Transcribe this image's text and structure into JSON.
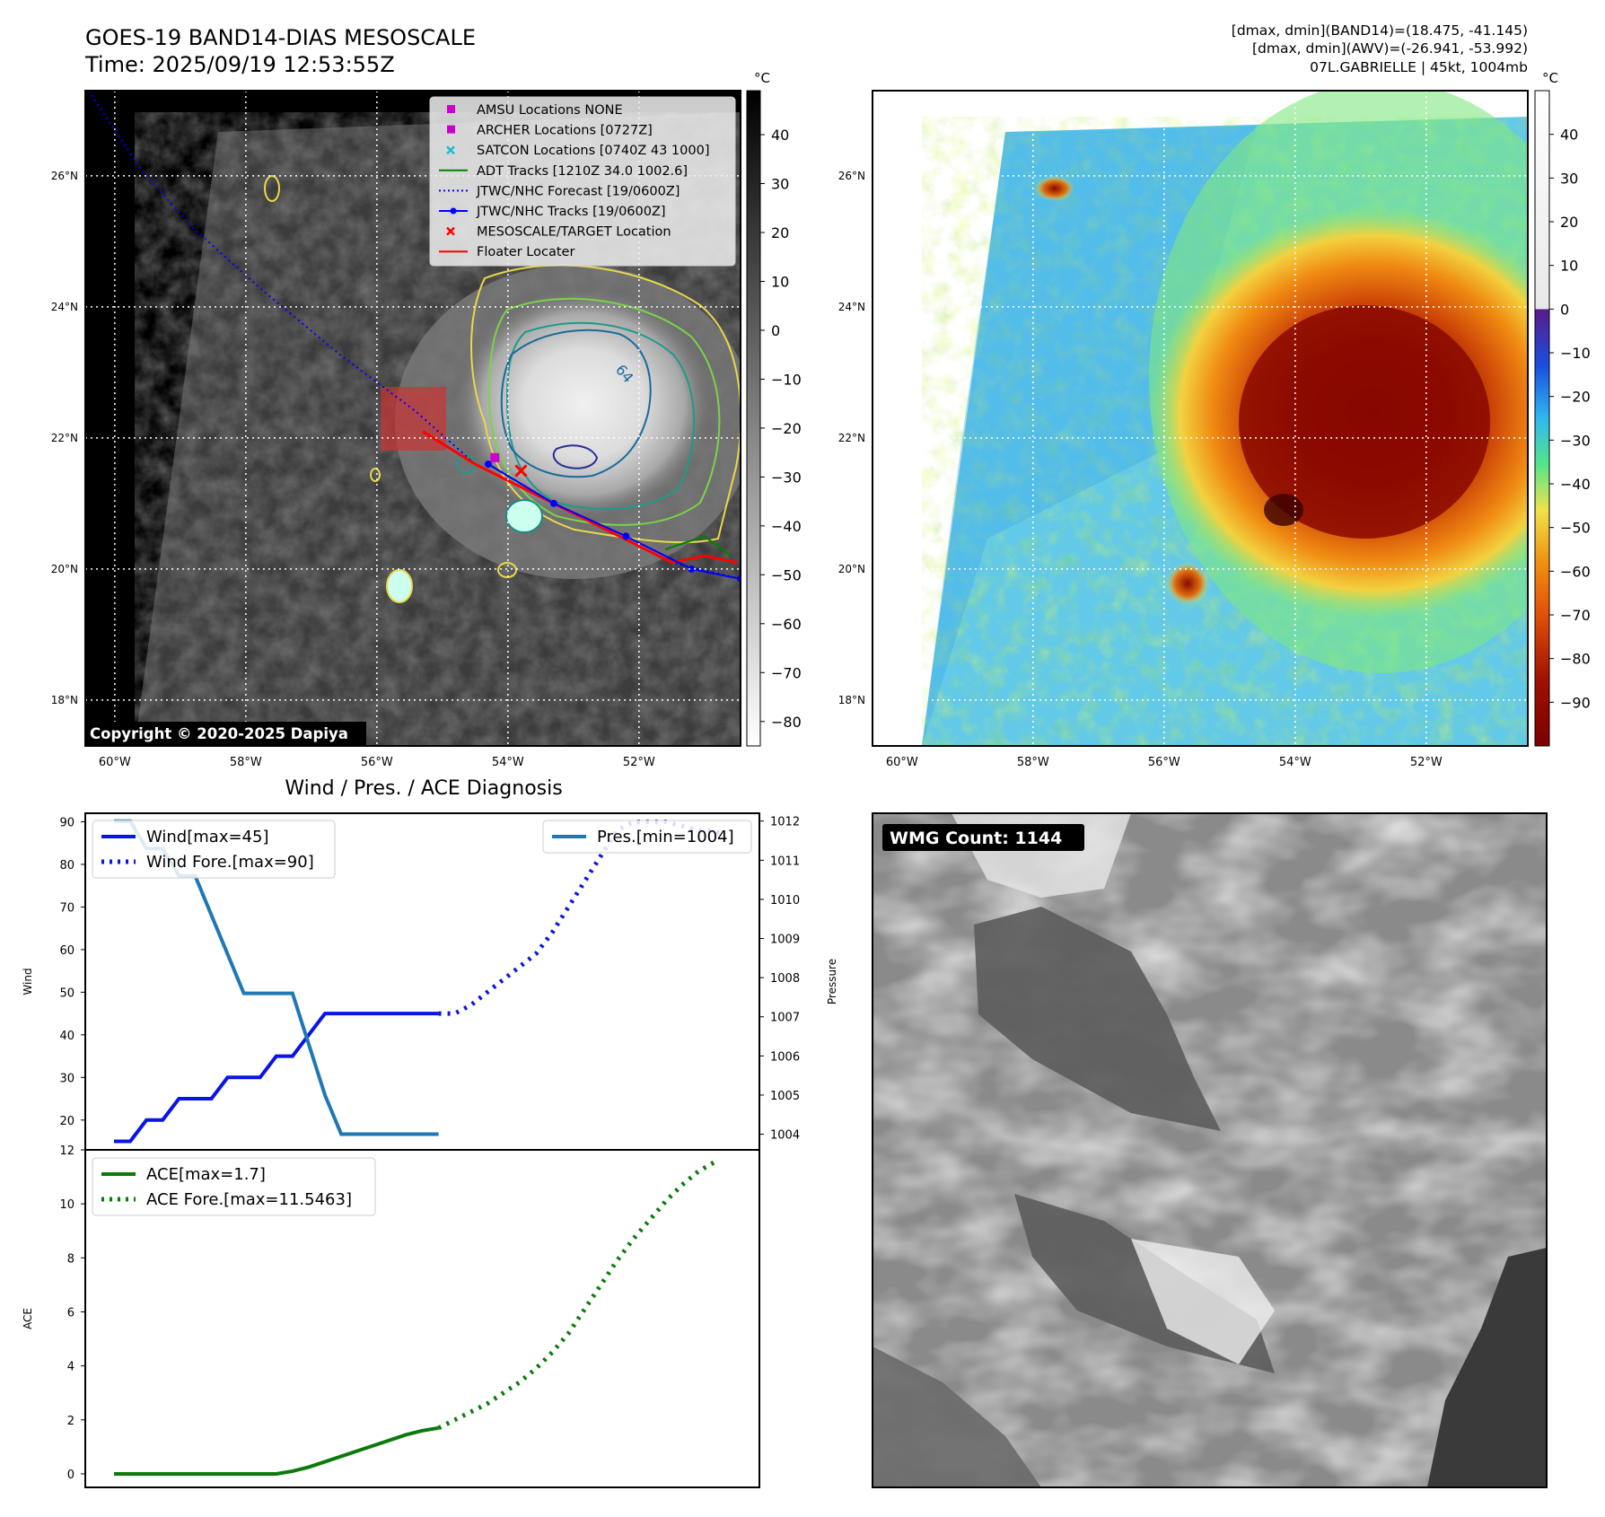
{
  "header": {
    "title_line1": "GOES-19 BAND14-DIAS MESOSCALE",
    "title_line2": "Time: 2025/09/19 12:53:55Z",
    "stats_line1": "[dmax, dmin](BAND14)=(18.475, -41.145)",
    "stats_line2": "[dmax, dmin](AWV)=(-26.941, -53.992)",
    "stats_line3": "07L.GABRIELLE | 45kt, 1004mb"
  },
  "copyright": "Copyright © 2020-2025 Dapiya",
  "wmg_label": "WMG Count: 1144",
  "diag_title": "Wind / Pres. / ACE Diagnosis",
  "colors": {
    "wind": "#0a14e6",
    "pres": "#1f77b4",
    "ace": "#0a7a0a",
    "floater": "#ff0000",
    "adt": "#008000",
    "amsu": "#cc00cc",
    "satcon": "#17becf"
  },
  "chart_data": [
    {
      "id": "band14-map",
      "type": "heatmap",
      "colorbar_unit": "°C",
      "colorbar_ticks": [
        "40",
        "30",
        "20",
        "10",
        "0",
        "−10",
        "−20",
        "−30",
        "−40",
        "−50",
        "−60",
        "−70",
        "−80"
      ],
      "colorbar_range": [
        -85,
        49
      ],
      "colormap": "grayscale",
      "x_ticks": [
        "60°W",
        "58°W",
        "56°W",
        "54°W",
        "52°W"
      ],
      "x_tick_values": [
        -60,
        -58,
        -56,
        -54,
        -52
      ],
      "y_ticks": [
        "26°N",
        "24°N",
        "22°N",
        "20°N",
        "18°N"
      ],
      "y_tick_values": [
        26,
        24,
        22,
        20,
        18
      ],
      "lon_range": [
        -60.45,
        -50.45
      ],
      "lat_range": [
        17.3,
        27.3
      ],
      "legend": [
        {
          "label": "AMSU Locations NONE",
          "marker": "square",
          "color": "#cc00cc"
        },
        {
          "label": "ARCHER Locations [0727Z]",
          "marker": "square",
          "color": "#cc00cc"
        },
        {
          "label": "SATCON Locations [0740Z 43 1000]",
          "marker": "x",
          "color": "#17becf"
        },
        {
          "label": "ADT Tracks [1210Z 34.0 1002.6]",
          "marker": "line",
          "color": "#008000"
        },
        {
          "label": "JTWC/NHC Forecast [19/0600Z]",
          "marker": "dotted",
          "color": "#0000ff"
        },
        {
          "label": "JTWC/NHC Tracks [19/0600Z]",
          "marker": "line-dot",
          "color": "#0000ff"
        },
        {
          "label": "MESOSCALE/TARGET Location",
          "marker": "x",
          "color": "#ff0000"
        },
        {
          "label": "Floater Locater",
          "marker": "line",
          "color": "#ff0000"
        }
      ],
      "contour_label": "64",
      "target_location": {
        "lon": -53.8,
        "lat": 21.5
      },
      "archer_location": {
        "lon": -54.2,
        "lat": 21.7
      },
      "jtwc_forecast_track": [
        [
          -60.4,
          27.3
        ],
        [
          -59.6,
          26.1
        ],
        [
          -58.8,
          25.2
        ],
        [
          -57.8,
          24.3
        ],
        [
          -56.6,
          23.3
        ],
        [
          -55.4,
          22.4
        ],
        [
          -54.5,
          21.6
        ],
        [
          -53.5,
          21.1
        ],
        [
          -52.5,
          20.6
        ],
        [
          -51.5,
          20.1
        ],
        [
          -50.45,
          19.85
        ]
      ],
      "jtwc_tracks": [
        [
          -54.3,
          21.6
        ],
        [
          -53.3,
          21.0
        ],
        [
          -52.2,
          20.5
        ],
        [
          -51.2,
          20.0
        ],
        [
          -50.45,
          19.85
        ]
      ],
      "floater_track": [
        [
          -55.3,
          22.1
        ],
        [
          -54.5,
          21.6
        ],
        [
          -53.3,
          21.0
        ],
        [
          -52.1,
          20.4
        ],
        [
          -51.5,
          20.1
        ],
        [
          -51.0,
          20.2
        ],
        [
          -50.5,
          20.1
        ]
      ],
      "adt_track": [
        [
          -51.6,
          20.3
        ],
        [
          -51.0,
          20.5
        ],
        [
          -50.6,
          20.2
        ]
      ]
    },
    {
      "id": "awv-map",
      "type": "heatmap",
      "colorbar_unit": "°C",
      "colorbar_ticks": [
        "40",
        "30",
        "20",
        "10",
        "0",
        "−10",
        "−20",
        "−30",
        "−40",
        "−50",
        "−60",
        "−70",
        "−80",
        "−90"
      ],
      "colorbar_range": [
        -100,
        50
      ],
      "colormap": "jet-turbo",
      "x_ticks": [
        "60°W",
        "58°W",
        "56°W",
        "54°W",
        "52°W"
      ],
      "x_tick_values": [
        -60,
        -58,
        -56,
        -54,
        -52
      ],
      "y_ticks": [
        "26°N",
        "24°N",
        "22°N",
        "20°N",
        "18°N"
      ],
      "y_tick_values": [
        26,
        24,
        22,
        20,
        18
      ],
      "lon_range": [
        -60.45,
        -50.45
      ],
      "lat_range": [
        17.3,
        27.3
      ]
    },
    {
      "id": "wind-pres",
      "type": "line",
      "x": [
        0,
        1,
        2,
        3,
        4,
        5,
        6,
        7,
        8,
        9,
        10,
        11,
        12,
        13,
        14,
        15,
        16,
        17,
        18,
        19,
        20,
        21,
        22,
        23,
        24,
        25,
        26,
        27,
        28,
        29,
        30,
        31,
        32,
        33,
        34,
        35,
        36,
        37,
        38
      ],
      "series": [
        {
          "name": "Wind[max=45]",
          "axis": "left",
          "style": "solid",
          "values": [
            15,
            15,
            20,
            20,
            25,
            25,
            25,
            30,
            30,
            30,
            35,
            35,
            40,
            45,
            45,
            45,
            45,
            45,
            45,
            45,
            45,
            null,
            null,
            null,
            null,
            null,
            null,
            null,
            null,
            null,
            null,
            null,
            null,
            null,
            null,
            null,
            null,
            null,
            null
          ]
        },
        {
          "name": "Wind Fore.[max=90]",
          "axis": "left",
          "style": "dotted",
          "values": [
            null,
            null,
            null,
            null,
            null,
            null,
            null,
            null,
            null,
            null,
            null,
            null,
            null,
            null,
            null,
            null,
            null,
            null,
            null,
            null,
            45,
            45,
            47,
            50,
            53,
            56,
            59,
            64,
            70,
            76,
            82,
            88,
            90,
            90,
            90,
            89,
            88,
            88,
            85
          ]
        },
        {
          "name": "Pres.[min=1004]",
          "axis": "right",
          "style": "solid",
          "values": [
            1012,
            1012,
            1011.3,
            1011.3,
            1010.6,
            1010.6,
            1009.6,
            1008.6,
            1007.6,
            1007.6,
            1007.6,
            1007.6,
            1006.3,
            1005,
            1004,
            1004,
            1004,
            1004,
            1004,
            1004,
            1004,
            null,
            null,
            null,
            null,
            null,
            null,
            null,
            null,
            null,
            null,
            null,
            null,
            null,
            null,
            null,
            null,
            null,
            null
          ]
        }
      ],
      "ylabel": "Wind",
      "y2label": "Pressure",
      "ylim": [
        13,
        92
      ],
      "y2lim": [
        1003.6,
        1012.2
      ],
      "yticks": [
        20,
        30,
        40,
        50,
        60,
        70,
        80,
        90
      ],
      "y2ticks": [
        1004,
        1005,
        1006,
        1007,
        1008,
        1009,
        1010,
        1011,
        1012
      ],
      "legend_left": "upper-left",
      "legend_right": "upper-right"
    },
    {
      "id": "ace",
      "type": "line",
      "x": [
        0,
        1,
        2,
        3,
        4,
        5,
        6,
        7,
        8,
        9,
        10,
        11,
        12,
        13,
        14,
        15,
        16,
        17,
        18,
        19,
        20,
        21,
        22,
        23,
        24,
        25,
        26,
        27,
        28,
        29,
        30,
        31,
        32,
        33,
        34,
        35,
        36,
        37,
        38
      ],
      "series": [
        {
          "name": "ACE[max=1.7]",
          "style": "solid",
          "values": [
            0,
            0,
            0,
            0,
            0,
            0,
            0,
            0,
            0,
            0,
            0,
            0.1,
            0.25,
            0.45,
            0.65,
            0.85,
            1.05,
            1.25,
            1.45,
            1.6,
            1.7,
            null,
            null,
            null,
            null,
            null,
            null,
            null,
            null,
            null,
            null,
            null,
            null,
            null,
            null,
            null,
            null,
            null,
            null
          ]
        },
        {
          "name": "ACE Fore.[max=11.5463]",
          "style": "dotted",
          "values": [
            null,
            null,
            null,
            null,
            null,
            null,
            null,
            null,
            null,
            null,
            null,
            null,
            null,
            null,
            null,
            null,
            null,
            null,
            null,
            null,
            1.7,
            2.0,
            2.3,
            2.6,
            3.0,
            3.4,
            3.9,
            4.5,
            5.2,
            6.1,
            7.0,
            7.9,
            8.7,
            9.4,
            10.1,
            10.7,
            11.2,
            11.5463,
            null
          ]
        }
      ],
      "ylabel": "ACE",
      "ylim": [
        -0.5,
        12
      ],
      "yticks": [
        0,
        2,
        4,
        6,
        8,
        10,
        12
      ],
      "legend": "upper-left"
    }
  ]
}
